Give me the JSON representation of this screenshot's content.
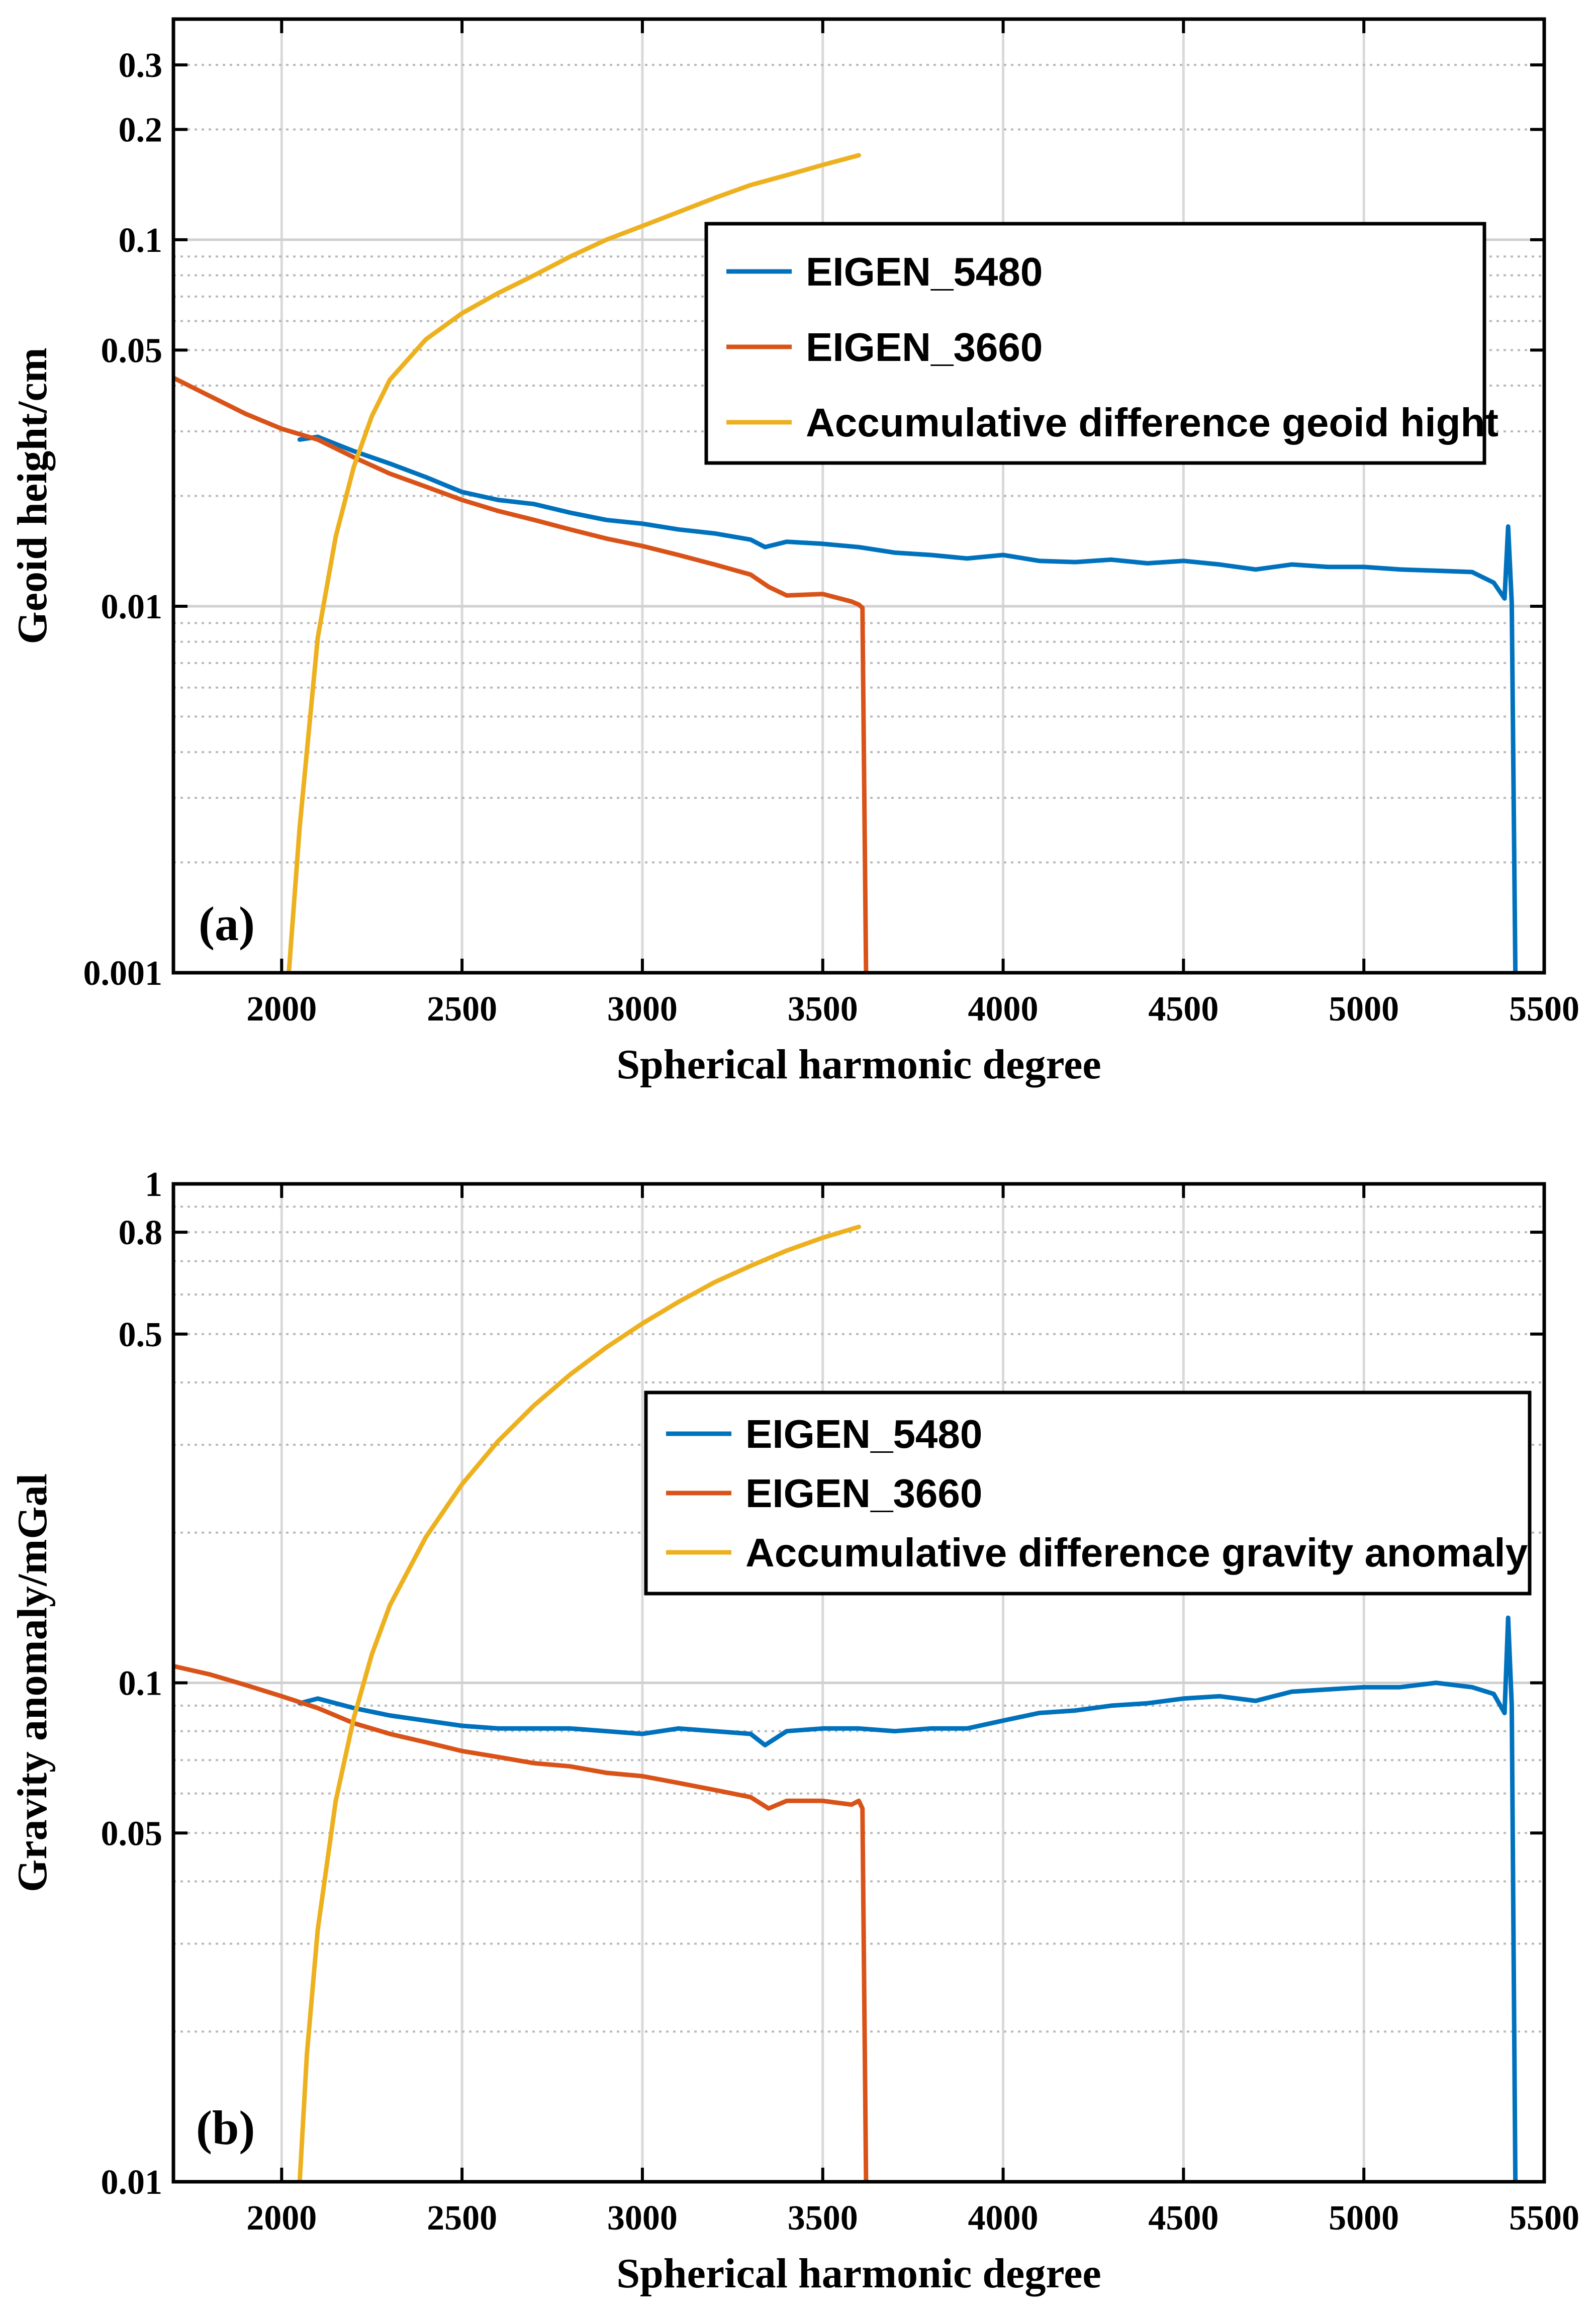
{
  "chart_data": [
    {
      "type": "line",
      "panel_label": "(a)",
      "yscale": "log",
      "xlabel": "Spherical harmonic degree",
      "ylabel": "Geoid height/cm",
      "xlim": [
        1700,
        5500
      ],
      "ylim": [
        0.001,
        0.4
      ],
      "xticks": [
        2000,
        2500,
        3000,
        3500,
        4000,
        4500,
        5000,
        5500
      ],
      "xtick_labels": [
        "2000",
        "2500",
        "3000",
        "3500",
        "4000",
        "4500",
        "5000",
        "5500"
      ],
      "yticks": [
        0.001,
        0.01,
        0.05,
        0.1,
        0.2,
        0.3
      ],
      "ytick_labels": [
        "0.001",
        "0.01",
        "0.05",
        "0.1",
        "0.2",
        "0.3"
      ],
      "grid": true,
      "legend_position": "upper-right",
      "series": [
        {
          "name": "EIGEN_5480",
          "color": "#0072BD",
          "x": [
            2050,
            2100,
            2200,
            2300,
            2400,
            2500,
            2600,
            2700,
            2800,
            2900,
            3000,
            3100,
            3200,
            3300,
            3340,
            3400,
            3500,
            3600,
            3700,
            3800,
            3900,
            4000,
            4100,
            4200,
            4300,
            4400,
            4500,
            4600,
            4700,
            4800,
            4900,
            5000,
            5100,
            5200,
            5300,
            5360,
            5390,
            5400,
            5410,
            5420
          ],
          "y": [
            0.0285,
            0.029,
            0.0265,
            0.0245,
            0.0225,
            0.0205,
            0.0195,
            0.019,
            0.018,
            0.0172,
            0.0168,
            0.0162,
            0.0158,
            0.0152,
            0.0145,
            0.015,
            0.0148,
            0.0145,
            0.014,
            0.0138,
            0.0135,
            0.0138,
            0.0133,
            0.0132,
            0.0134,
            0.0131,
            0.0133,
            0.013,
            0.0126,
            0.013,
            0.0128,
            0.0128,
            0.0126,
            0.0125,
            0.0124,
            0.0116,
            0.0105,
            0.0165,
            0.0102,
            0.001
          ]
        },
        {
          "name": "EIGEN_3660",
          "color": "#D95319",
          "x": [
            1700,
            1800,
            1900,
            2000,
            2100,
            2200,
            2300,
            2400,
            2500,
            2600,
            2700,
            2800,
            2900,
            3000,
            3100,
            3200,
            3300,
            3350,
            3400,
            3500,
            3580,
            3600,
            3610,
            3620
          ],
          "y": [
            0.042,
            0.0375,
            0.0335,
            0.0305,
            0.0285,
            0.0255,
            0.023,
            0.0212,
            0.0195,
            0.0182,
            0.0172,
            0.0162,
            0.0153,
            0.0146,
            0.0138,
            0.013,
            0.0122,
            0.0113,
            0.0107,
            0.0108,
            0.0103,
            0.0101,
            0.0099,
            0.001
          ]
        },
        {
          "name": "Accumulative difference geoid hight",
          "color": "#EDB120",
          "x": [
            2020,
            2050,
            2100,
            2150,
            2200,
            2250,
            2300,
            2400,
            2500,
            2600,
            2700,
            2800,
            2900,
            3000,
            3100,
            3200,
            3300,
            3400,
            3500,
            3600
          ],
          "y": [
            0.001,
            0.0025,
            0.0082,
            0.0155,
            0.024,
            0.033,
            0.0415,
            0.0535,
            0.063,
            0.0715,
            0.08,
            0.09,
            0.1,
            0.109,
            0.119,
            0.13,
            0.141,
            0.15,
            0.16,
            0.17
          ]
        }
      ]
    },
    {
      "type": "line",
      "panel_label": "(b)",
      "yscale": "log",
      "xlabel": "Spherical harmonic degree",
      "ylabel": "Gravity anomaly/mGal",
      "xlim": [
        1700,
        5500
      ],
      "ylim": [
        0.01,
        1
      ],
      "xticks": [
        2000,
        2500,
        3000,
        3500,
        4000,
        4500,
        5000,
        5500
      ],
      "xtick_labels": [
        "2000",
        "2500",
        "3000",
        "3500",
        "4000",
        "4500",
        "5000",
        "5500"
      ],
      "yticks": [
        0.01,
        0.05,
        0.1,
        0.5,
        0.8,
        1
      ],
      "ytick_labels": [
        "0.01",
        "0.05",
        "0.1",
        "0.5",
        "0.8",
        "1"
      ],
      "grid": true,
      "legend_position": "upper-right",
      "series": [
        {
          "name": "EIGEN_5480",
          "color": "#0072BD",
          "x": [
            2050,
            2100,
            2200,
            2300,
            2400,
            2500,
            2600,
            2700,
            2800,
            2900,
            3000,
            3100,
            3200,
            3300,
            3340,
            3400,
            3500,
            3600,
            3700,
            3800,
            3900,
            4000,
            4100,
            4200,
            4300,
            4400,
            4500,
            4600,
            4700,
            4800,
            4900,
            5000,
            5100,
            5200,
            5300,
            5360,
            5390,
            5400,
            5410,
            5420
          ],
          "y": [
            0.091,
            0.093,
            0.089,
            0.086,
            0.084,
            0.082,
            0.081,
            0.081,
            0.081,
            0.08,
            0.079,
            0.081,
            0.08,
            0.079,
            0.075,
            0.08,
            0.081,
            0.081,
            0.08,
            0.081,
            0.081,
            0.084,
            0.087,
            0.088,
            0.09,
            0.091,
            0.093,
            0.094,
            0.092,
            0.096,
            0.097,
            0.098,
            0.098,
            0.1,
            0.098,
            0.095,
            0.087,
            0.135,
            0.09,
            0.01
          ]
        },
        {
          "name": "EIGEN_3660",
          "color": "#D95319",
          "x": [
            1700,
            1800,
            1900,
            2000,
            2100,
            2200,
            2300,
            2400,
            2500,
            2600,
            2700,
            2800,
            2900,
            3000,
            3100,
            3200,
            3300,
            3350,
            3400,
            3500,
            3580,
            3600,
            3610,
            3620
          ],
          "y": [
            0.108,
            0.104,
            0.099,
            0.094,
            0.089,
            0.083,
            0.079,
            0.076,
            0.073,
            0.071,
            0.069,
            0.068,
            0.066,
            0.065,
            0.063,
            0.061,
            0.059,
            0.056,
            0.058,
            0.058,
            0.057,
            0.058,
            0.056,
            0.01
          ]
        },
        {
          "name": "Accumulative difference gravity anomaly",
          "color": "#EDB120",
          "x": [
            2050,
            2070,
            2100,
            2150,
            2200,
            2250,
            2300,
            2400,
            2500,
            2600,
            2700,
            2800,
            2900,
            3000,
            3100,
            3200,
            3300,
            3400,
            3500,
            3600
          ],
          "y": [
            0.01,
            0.018,
            0.032,
            0.058,
            0.085,
            0.114,
            0.143,
            0.196,
            0.25,
            0.305,
            0.36,
            0.415,
            0.47,
            0.525,
            0.58,
            0.635,
            0.685,
            0.735,
            0.78,
            0.82
          ]
        }
      ]
    }
  ]
}
